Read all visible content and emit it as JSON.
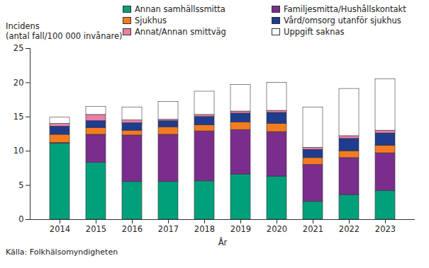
{
  "chart_data": {
    "type": "bar",
    "stacked": true,
    "y_label": "Incidens\n(antal fall/100 000 invånare)",
    "x_label": "År",
    "caption": "Källa: Folkhälsomyndigheten",
    "categories": [
      "2014",
      "2015",
      "2016",
      "2017",
      "2018",
      "2019",
      "2020",
      "2021",
      "2022",
      "2023"
    ],
    "series": [
      {
        "name": "Annan samhällssmitta",
        "color": "#00a07a",
        "values": [
          11.1,
          8.3,
          5.5,
          5.5,
          5.6,
          6.6,
          6.3,
          2.6,
          3.6,
          4.2
        ]
      },
      {
        "name": "Familjesmitta/Hushållskontakt",
        "color": "#7b2d8e",
        "values": [
          0.1,
          4.1,
          6.8,
          6.9,
          7.3,
          6.5,
          6.5,
          5.4,
          5.4,
          5.5
        ]
      },
      {
        "name": "Sjukhus",
        "color": "#f47c20",
        "values": [
          1.2,
          1.0,
          0.7,
          1.1,
          0.9,
          1.1,
          1.2,
          1.0,
          1.0,
          1.1
        ]
      },
      {
        "name": "Vård/omsorg utanför sjukhus",
        "color": "#1f3c8f",
        "values": [
          1.2,
          1.0,
          1.1,
          0.9,
          1.2,
          1.3,
          1.6,
          1.2,
          1.8,
          1.8
        ]
      },
      {
        "name": "Annat/Annan smittväg",
        "color": "#ea7fa6",
        "values": [
          0.4,
          0.9,
          0.4,
          0.2,
          0.3,
          0.3,
          0.3,
          0.3,
          0.4,
          0.4
        ]
      },
      {
        "name": "Uppgift saknas",
        "color": "#ffffff",
        "values": [
          0.9,
          1.2,
          1.9,
          2.6,
          3.4,
          3.9,
          4.1,
          5.9,
          6.9,
          7.5
        ]
      }
    ],
    "ylim": [
      0,
      25
    ],
    "yticks": [
      0,
      5,
      10,
      15,
      20,
      25
    ],
    "grid": false,
    "legend": "top"
  }
}
